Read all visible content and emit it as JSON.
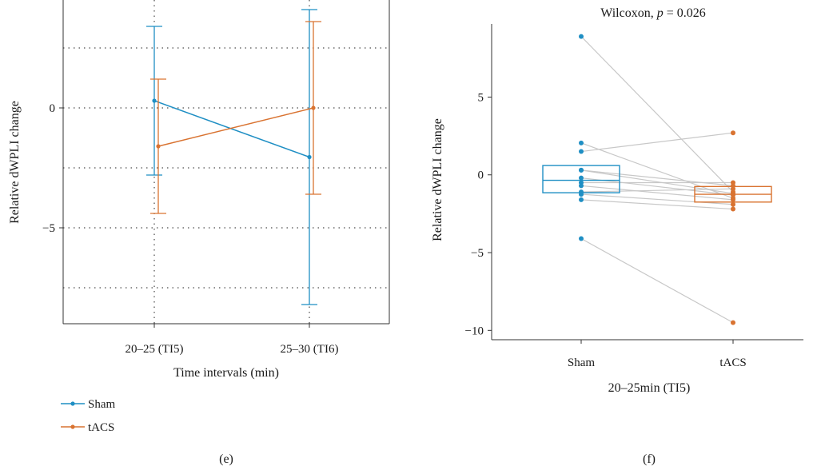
{
  "colors": {
    "sham": "#1f8fc4",
    "tacs": "#d97331",
    "pair": "#c8c8c8"
  },
  "chart_data": [
    {
      "panel": "(e)",
      "type": "line",
      "xlabel": "Time intervals (min)",
      "ylabel": "Relative dWPLI change",
      "categories": [
        "20–25 (TI5)",
        "25–30 (TI6)"
      ],
      "ylim": [
        -9,
        4.5
      ],
      "yticks": [
        -5,
        0
      ],
      "grid": true,
      "legend_position": "bottom-left",
      "series": [
        {
          "name": "Sham",
          "color_key": "sham",
          "values": [
            0.3,
            -2.05
          ],
          "err_low": [
            -2.8,
            -8.2
          ],
          "err_high": [
            3.4,
            4.1
          ]
        },
        {
          "name": "tACS",
          "color_key": "tacs",
          "values": [
            -1.6,
            0.0
          ],
          "err_low": [
            -4.4,
            -3.6
          ],
          "err_high": [
            1.2,
            3.6
          ]
        }
      ]
    },
    {
      "panel": "(f)",
      "type": "box",
      "title_prefix": "Wilcoxon,",
      "title_p": "p",
      "title_suffix": " = 0.026",
      "xlabel": "20–25min (TI5)",
      "ylabel": "Relative dWPLI change",
      "categories": [
        "Sham",
        "tACS"
      ],
      "ylim": [
        -10.6,
        9.7
      ],
      "yticks": [
        -10,
        -5,
        0,
        5
      ],
      "boxes": [
        {
          "name": "Sham",
          "color_key": "sham",
          "q1": -1.15,
          "median": -0.35,
          "q3": 0.6
        },
        {
          "name": "tACS",
          "color_key": "tacs",
          "q1": -1.75,
          "median": -1.25,
          "q3": -0.75
        }
      ],
      "pairs": [
        [
          8.9,
          -1.1
        ],
        [
          2.05,
          -1.5
        ],
        [
          1.5,
          2.7
        ],
        [
          0.3,
          -1.2
        ],
        [
          0.3,
          -0.7
        ],
        [
          -0.2,
          -1.3
        ],
        [
          -0.5,
          -0.5
        ],
        [
          -0.7,
          -1.6
        ],
        [
          -1.1,
          -0.9
        ],
        [
          -1.25,
          -1.9
        ],
        [
          -1.6,
          -2.2
        ],
        [
          -4.1,
          -9.5
        ]
      ]
    }
  ]
}
